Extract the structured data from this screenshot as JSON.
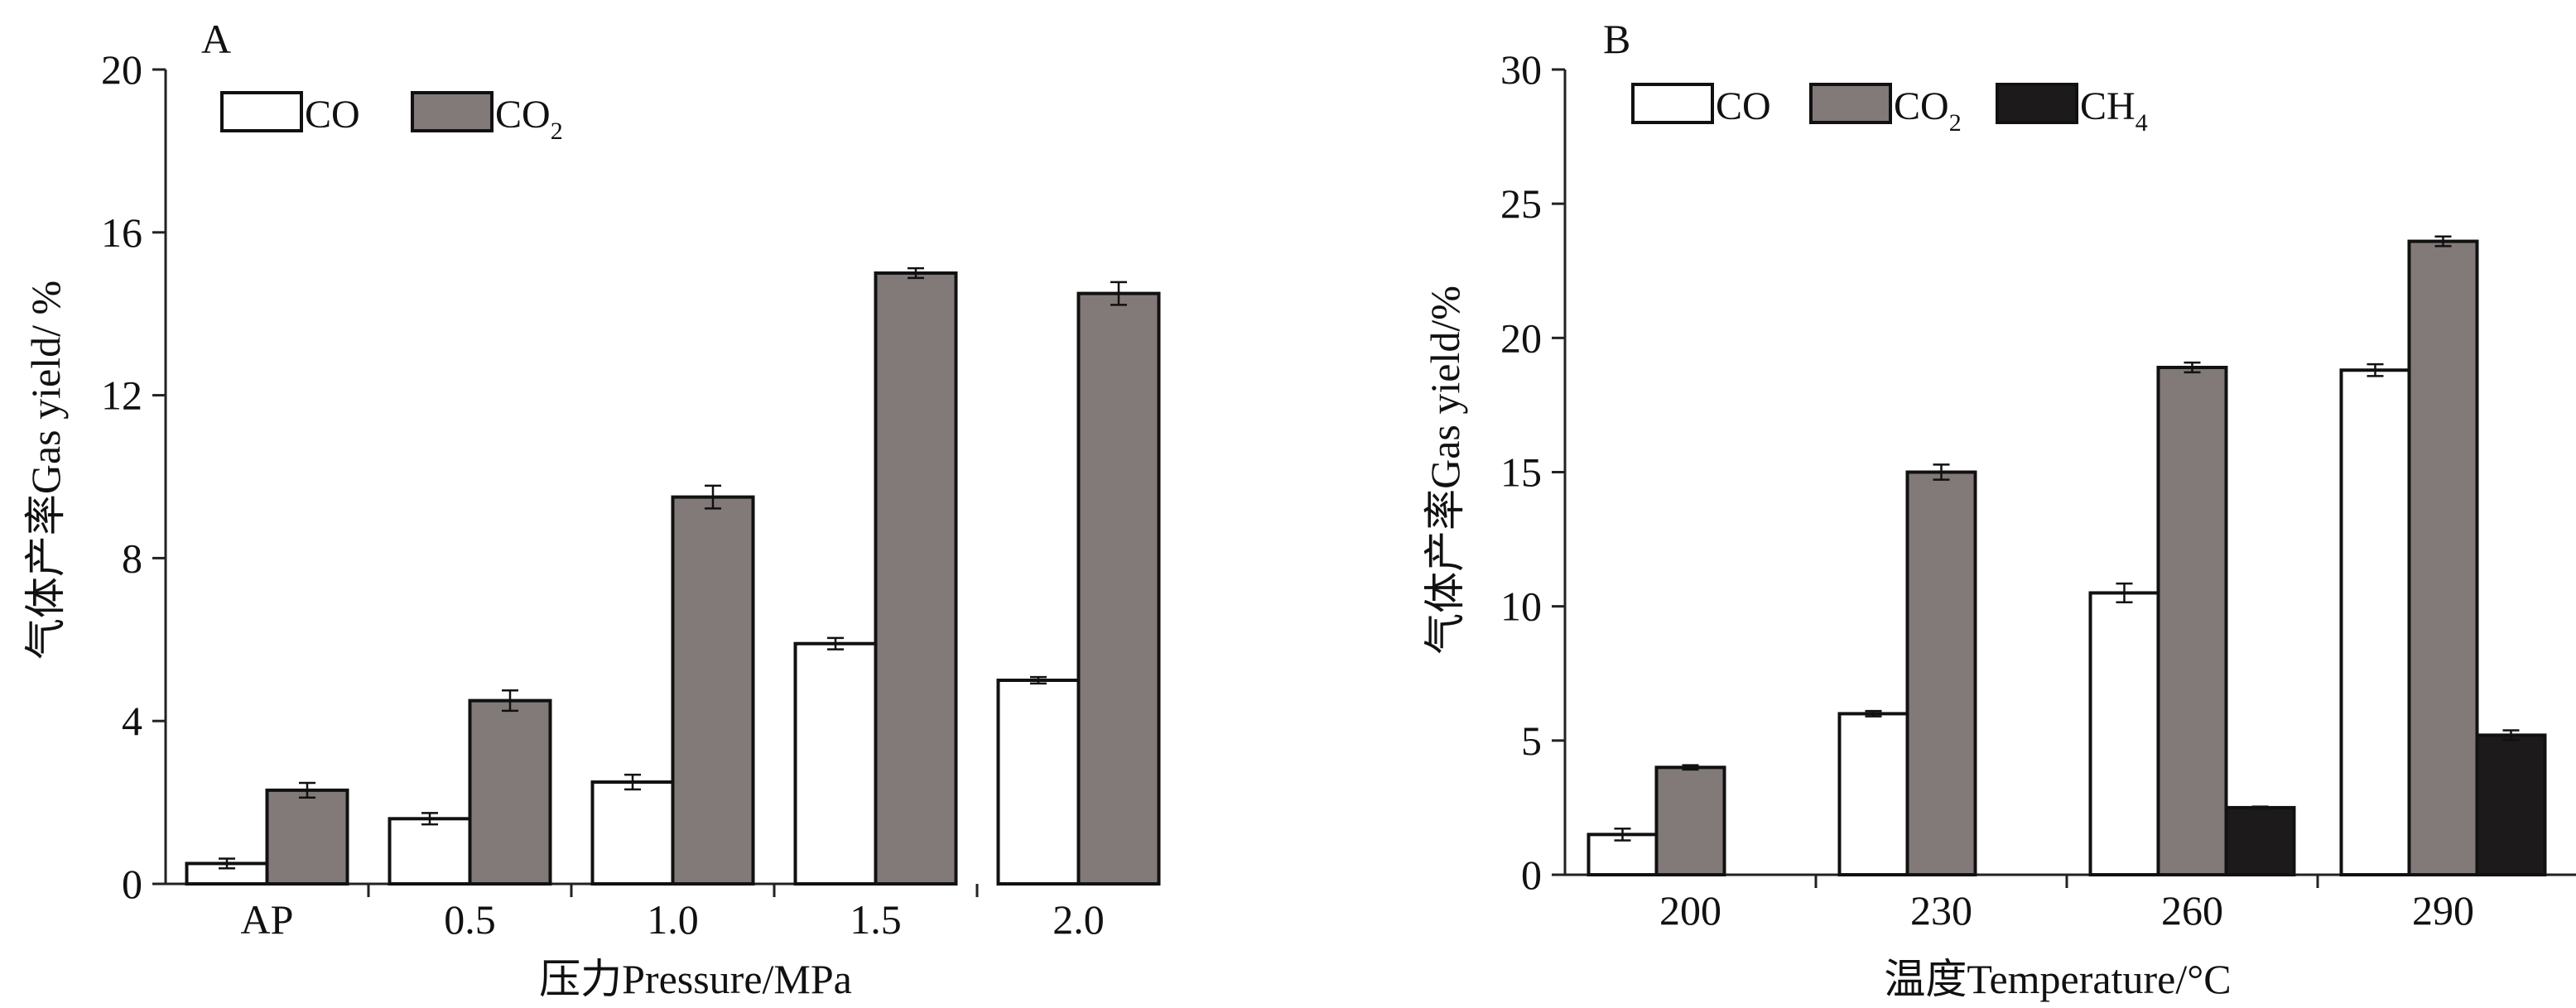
{
  "chart_data": [
    {
      "panel_label": "A",
      "type": "bar",
      "categories": [
        "AP",
        "0.5",
        "1.0",
        "1.5",
        "2.0"
      ],
      "series": [
        {
          "name": "CO",
          "values": [
            0.5,
            1.6,
            2.5,
            5.9,
            5.0
          ],
          "errors": [
            0.12,
            0.14,
            0.18,
            0.14,
            0.08
          ],
          "color": "#ffffff"
        },
        {
          "name": "CO2",
          "values": [
            2.3,
            4.5,
            9.5,
            15.0,
            14.5
          ],
          "errors": [
            0.18,
            0.25,
            0.28,
            0.12,
            0.28
          ],
          "color": "#827a78"
        }
      ],
      "xlabel_cn": "压力",
      "xlabel": "Pressure/MPa",
      "ylabel_cn": "气体产率",
      "ylabel": "Gas yield/ %",
      "ylim": [
        0,
        20
      ],
      "yticks": [
        0,
        4,
        8,
        12,
        16,
        20
      ],
      "legend_position": "top-left",
      "grid": false
    },
    {
      "panel_label": "B",
      "type": "bar",
      "categories": [
        "200",
        "230",
        "260",
        "290"
      ],
      "series": [
        {
          "name": "CO",
          "values": [
            1.5,
            6.0,
            10.5,
            18.8
          ],
          "errors": [
            0.22,
            0.1,
            0.35,
            0.22
          ],
          "color": "#ffffff"
        },
        {
          "name": "CO2",
          "values": [
            4.0,
            15.0,
            18.9,
            23.6
          ],
          "errors": [
            0.08,
            0.28,
            0.18,
            0.18
          ],
          "color": "#827a78"
        },
        {
          "name": "CH4",
          "values": [
            null,
            null,
            2.5,
            5.2
          ],
          "errors": [
            null,
            null,
            0.04,
            0.18
          ],
          "color": "#1c1a1a"
        }
      ],
      "xlabel_cn": "温度",
      "xlabel": "Temperature/°C",
      "ylabel_cn": "气体产率",
      "ylabel": "Gas yield/%",
      "ylim": [
        0,
        30
      ],
      "yticks": [
        0,
        5,
        10,
        15,
        20,
        25,
        30
      ],
      "legend_position": "top-left",
      "grid": false
    }
  ]
}
